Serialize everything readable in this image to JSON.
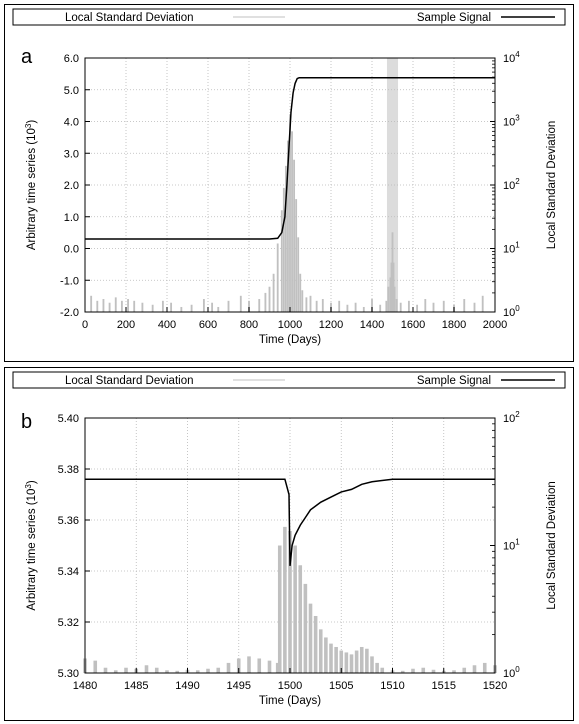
{
  "colors": {
    "signal": "#000000",
    "deviation": "#c0c0c0",
    "grid": "#b8b8b8",
    "background": "#ffffff"
  },
  "chart_data": [
    {
      "panel_letter": "a",
      "type": "line",
      "legend": {
        "left_label": "Local Standard Deviation",
        "right_label": "Sample Signal",
        "placement": "top"
      },
      "xlabel": "Time (Days)",
      "ylabel_left": "Arbitrary time series (10",
      "ylabel_left_sup": "3",
      "ylabel_left_close": ")",
      "ylabel_right": "Local Standard Deviation",
      "xlim": [
        0,
        2000
      ],
      "ylim_left": [
        -2.0,
        6.0
      ],
      "ylim_right": [
        1,
        10000
      ],
      "right_log_scale": true,
      "grid": true,
      "x_ticks": [
        "0",
        "200",
        "400",
        "600",
        "800",
        "1000",
        "1200",
        "1400",
        "1600",
        "1800",
        "2000"
      ],
      "y_left_ticks": [
        "-2.0",
        "-1.0",
        "0.0",
        "1.0",
        "2.0",
        "3.0",
        "4.0",
        "5.0",
        "6.0"
      ],
      "y_right_ticks": [
        {
          "base": "10",
          "exp": "0"
        },
        {
          "base": "10",
          "exp": "1"
        },
        {
          "base": "10",
          "exp": "2"
        },
        {
          "base": "10",
          "exp": "3"
        },
        {
          "base": "10",
          "exp": "4"
        }
      ],
      "series": [
        {
          "name": "Sample Signal",
          "axis": "left",
          "x": [
            0,
            900,
            940,
            960,
            975,
            985,
            995,
            1005,
            1015,
            1025,
            1035,
            1045,
            1060,
            1100,
            2000
          ],
          "y": [
            0.3,
            0.3,
            0.32,
            0.5,
            1.0,
            2.0,
            3.2,
            4.3,
            4.9,
            5.2,
            5.35,
            5.38,
            5.38,
            5.38,
            5.38
          ]
        },
        {
          "name": "Local Standard Deviation",
          "axis": "right",
          "x": [
            30,
            60,
            90,
            120,
            150,
            180,
            210,
            240,
            280,
            330,
            380,
            420,
            470,
            520,
            580,
            620,
            650,
            700,
            760,
            800,
            850,
            880,
            900,
            920,
            940,
            960,
            970,
            980,
            990,
            1000,
            1010,
            1020,
            1030,
            1040,
            1050,
            1060,
            1080,
            1100,
            1130,
            1160,
            1200,
            1240,
            1280,
            1320,
            1360,
            1400,
            1440,
            1470,
            1480,
            1490,
            1495,
            1500,
            1505,
            1510,
            1520,
            1540,
            1580,
            1620,
            1660,
            1700,
            1750,
            1800,
            1850,
            1900,
            1940
          ],
          "y": [
            1.8,
            1.5,
            1.6,
            1.4,
            1.7,
            1.5,
            1.6,
            1.5,
            1.4,
            1.3,
            1.5,
            1.4,
            1.2,
            1.3,
            1.6,
            1.4,
            1.2,
            1.5,
            1.8,
            1.5,
            1.6,
            2.0,
            2.5,
            4,
            12,
            40,
            90,
            200,
            500,
            1300,
            700,
            250,
            60,
            15,
            4,
            2.2,
            1.7,
            1.8,
            1.5,
            1.6,
            1.4,
            1.5,
            1.3,
            1.4,
            1.2,
            1.6,
            1.3,
            1.5,
            2.5,
            3.5,
            6,
            18,
            6,
            2.5,
            1.6,
            1.4,
            1.5,
            1.3,
            1.6,
            1.4,
            1.5,
            1.3,
            1.6,
            1.4,
            1.8
          ]
        }
      ],
      "highlight_band_x": [
        1473,
        1527
      ]
    },
    {
      "panel_letter": "b",
      "type": "line",
      "legend": {
        "left_label": "Local Standard Deviation",
        "right_label": "Sample Signal",
        "placement": "top"
      },
      "xlabel": "Time (Days)",
      "ylabel_left": "Arbitrary time series (10",
      "ylabel_left_sup": "3",
      "ylabel_left_close": ")",
      "ylabel_right": "Local Standard Deviation",
      "xlim": [
        1480,
        1520
      ],
      "ylim_left": [
        5.3,
        5.4
      ],
      "ylim_right": [
        1,
        100
      ],
      "right_log_scale": true,
      "grid": true,
      "x_ticks": [
        "1480",
        "1485",
        "1490",
        "1495",
        "1500",
        "1505",
        "1510",
        "1515",
        "1520"
      ],
      "y_left_ticks": [
        "5.30",
        "5.32",
        "5.34",
        "5.36",
        "5.38",
        "5.40"
      ],
      "y_right_ticks": [
        {
          "base": "10",
          "exp": "0"
        },
        {
          "base": "10",
          "exp": "1"
        },
        {
          "base": "10",
          "exp": "2"
        }
      ],
      "series": [
        {
          "name": "Sample Signal",
          "axis": "left",
          "x": [
            1480,
            1499.5,
            1499.9,
            1500.0,
            1500.2,
            1500.5,
            1501,
            1501.5,
            1502,
            1503,
            1504,
            1505,
            1506,
            1507,
            1508,
            1510,
            1512,
            1515,
            1520
          ],
          "y": [
            5.376,
            5.376,
            5.37,
            5.342,
            5.35,
            5.354,
            5.358,
            5.361,
            5.364,
            5.367,
            5.369,
            5.371,
            5.372,
            5.374,
            5.375,
            5.376,
            5.376,
            5.376,
            5.376
          ]
        },
        {
          "name": "Local Standard Deviation",
          "axis": "right",
          "x": [
            1480,
            1481,
            1482,
            1483,
            1484,
            1485,
            1486,
            1487,
            1488,
            1489,
            1490,
            1491,
            1492,
            1493,
            1494,
            1495,
            1496,
            1497,
            1498,
            1498.8,
            1499,
            1499.5,
            1500,
            1500.5,
            1501,
            1501.5,
            1502,
            1502.5,
            1503,
            1503.5,
            1504,
            1504.5,
            1505,
            1505.5,
            1506,
            1506.5,
            1507,
            1507.5,
            1508,
            1508.5,
            1509,
            1510,
            1511,
            1512,
            1513,
            1514,
            1515,
            1516,
            1517,
            1518,
            1519,
            1520
          ],
          "y": [
            1.3,
            1.25,
            1.1,
            1.05,
            1.1,
            1.08,
            1.15,
            1.1,
            1.05,
            1.04,
            1.06,
            1.05,
            1.08,
            1.1,
            1.2,
            1.3,
            1.35,
            1.3,
            1.25,
            1.2,
            10,
            14,
            13,
            10,
            7,
            5,
            3.5,
            2.8,
            2.2,
            1.9,
            1.7,
            1.6,
            1.5,
            1.45,
            1.4,
            1.5,
            1.6,
            1.55,
            1.35,
            1.2,
            1.1,
            1.05,
            1.04,
            1.08,
            1.1,
            1.06,
            1.04,
            1.05,
            1.1,
            1.15,
            1.2,
            1.15
          ]
        }
      ]
    }
  ]
}
